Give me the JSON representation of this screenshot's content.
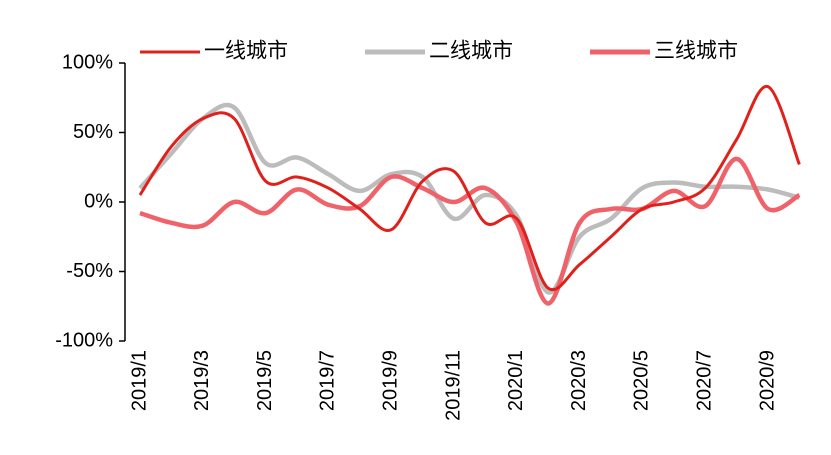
{
  "chart_data": {
    "type": "line",
    "categories": [
      "2019/1",
      null,
      "2019/3",
      null,
      "2019/5",
      null,
      "2019/7",
      null,
      "2019/9",
      null,
      "2019/11",
      null,
      "2020/1",
      null,
      "2020/3",
      null,
      "2020/5",
      null,
      "2020/7",
      null,
      "2020/9",
      null
    ],
    "series": [
      {
        "name": "一线城市",
        "color": "#e0201b",
        "values": [
          5,
          40,
          60,
          60,
          15,
          18,
          10,
          -5,
          -20,
          15,
          22,
          -15,
          -12,
          -62,
          -45,
          -25,
          -5,
          0,
          10,
          45,
          83,
          27
        ]
      },
      {
        "name": "二线城市",
        "color": "#bcbcbc",
        "values": [
          10,
          35,
          60,
          68,
          28,
          32,
          20,
          8,
          20,
          18,
          -12,
          5,
          -10,
          -65,
          -25,
          -12,
          10,
          14,
          11,
          11,
          9,
          3
        ]
      },
      {
        "name": "三线城市",
        "color": "#f0626a",
        "values": [
          -8,
          -15,
          -17,
          0,
          -8,
          9,
          -2,
          -3,
          18,
          10,
          0,
          10,
          -15,
          -73,
          -15,
          -5,
          -5,
          8,
          -3,
          31,
          -5,
          5
        ]
      }
    ],
    "ylim": [
      -100,
      100
    ],
    "yticks": [
      {
        "value": 100,
        "label": "100%"
      },
      {
        "value": 50,
        "label": "50%"
      },
      {
        "value": 0,
        "label": "0%"
      },
      {
        "value": -50,
        "label": "-50%"
      },
      {
        "value": -100,
        "label": "-100%"
      }
    ]
  }
}
